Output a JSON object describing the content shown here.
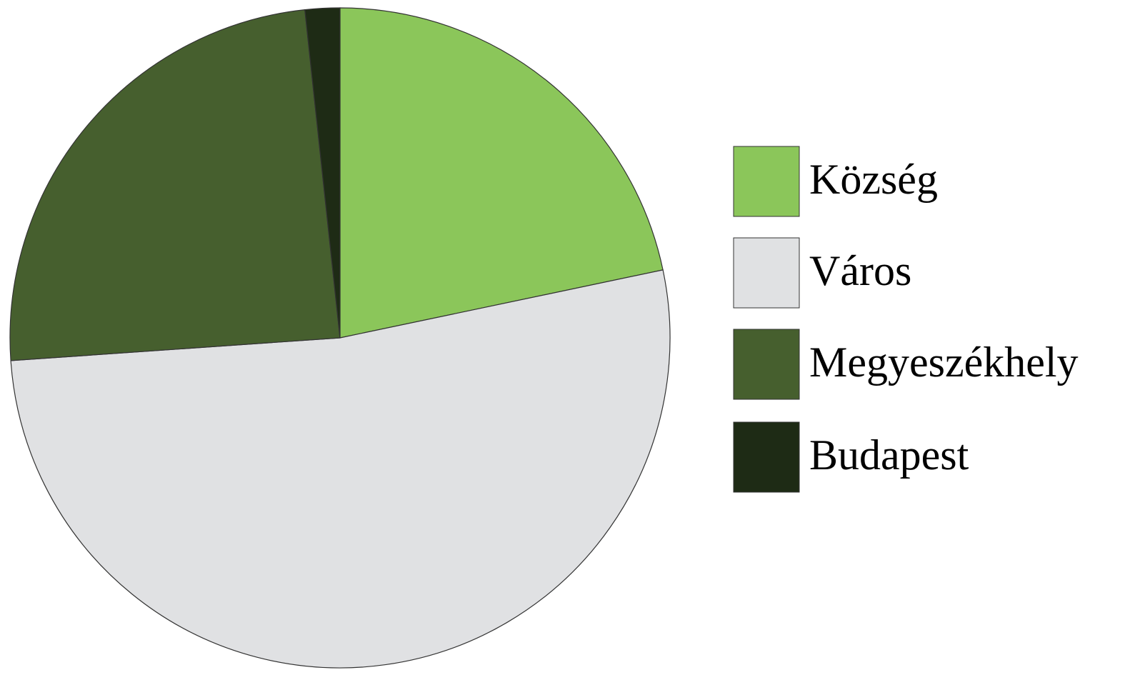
{
  "chart_data": {
    "type": "pie",
    "categories": [
      "Község",
      "Város",
      "Megyeszékhely",
      "Budapest"
    ],
    "values": [
      21.7,
      52.2,
      24.4,
      1.7
    ],
    "colors": [
      "#8bc65a",
      "#e0e1e3",
      "#465f2e",
      "#1e2b15"
    ],
    "legend": "right"
  }
}
